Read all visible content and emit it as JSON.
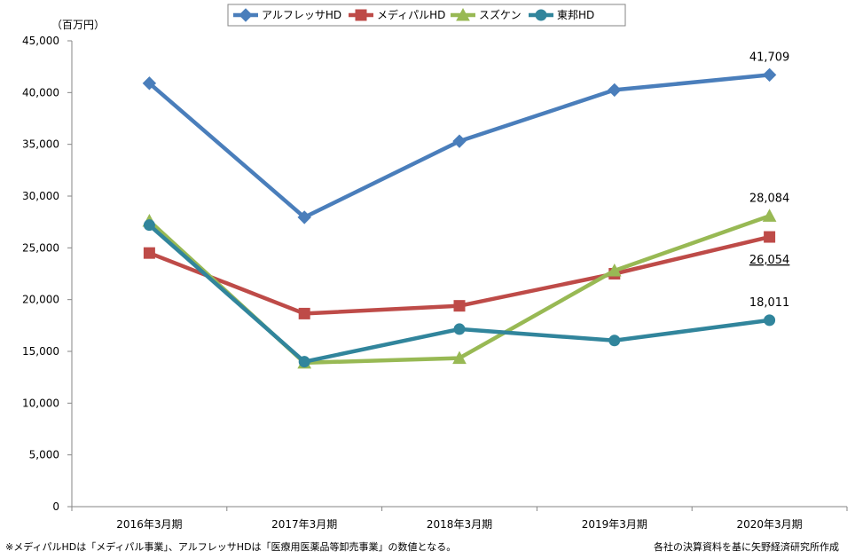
{
  "chart_data": {
    "type": "line",
    "unit_label": "（百万円）",
    "categories": [
      "2016年3月期",
      "2017年3月期",
      "2018年3月期",
      "2019年3月期",
      "2020年3月期"
    ],
    "ylim": [
      0,
      45000
    ],
    "yticks": [
      "0",
      "5,000",
      "10,000",
      "15,000",
      "20,000",
      "25,000",
      "30,000",
      "35,000",
      "40,000",
      "45,000"
    ],
    "grid": false,
    "legend_position": "top-center",
    "series": [
      {
        "name": "アルフレッサHD",
        "color": "#4a7ebb",
        "marker": "diamond",
        "values": [
          40900,
          27950,
          35300,
          40250,
          41709
        ]
      },
      {
        "name": "メディパルHD",
        "color": "#be4b48",
        "marker": "square",
        "values": [
          24500,
          18650,
          19400,
          22500,
          26054
        ]
      },
      {
        "name": "スズケン",
        "color": "#98b954",
        "marker": "triangle",
        "values": [
          27600,
          13900,
          14350,
          22800,
          28084
        ]
      },
      {
        "name": "東邦HD",
        "color": "#31859c",
        "marker": "circle",
        "values": [
          27200,
          14000,
          17150,
          16050,
          18011
        ]
      }
    ],
    "annotations": [
      {
        "series": 0,
        "index": 4,
        "text": "41,709"
      },
      {
        "series": 2,
        "index": 4,
        "text": "28,084"
      },
      {
        "series": 1,
        "index": 4,
        "text": "26,054",
        "underline": true
      },
      {
        "series": 3,
        "index": 4,
        "text": "18,011"
      }
    ]
  },
  "footnotes": {
    "left": "※メディパルHDは「メディパル事業」、アルフレッサHDは「医療用医薬品等卸売事業」の数値となる。",
    "right": "各社の決算資料を基に矢野経済研究所作成"
  }
}
